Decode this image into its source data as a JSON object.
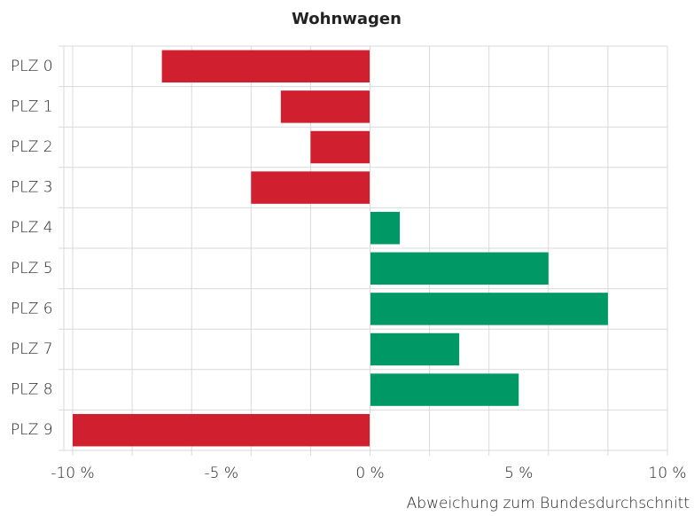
{
  "chart_data": {
    "type": "barh",
    "title": "Wohnwagen",
    "x_label": "Abweichung zum Bundesdurchschnitt",
    "categories": [
      "PLZ 0",
      "PLZ 1",
      "PLZ 2",
      "PLZ 3",
      "PLZ 4",
      "PLZ 5",
      "PLZ 6",
      "PLZ 7",
      "PLZ 8",
      "PLZ 9"
    ],
    "values": [
      -7,
      -3,
      -2,
      -4,
      1,
      6,
      8,
      3,
      5,
      -10
    ],
    "colors": [
      "#d0202f",
      "#d0202f",
      "#d0202f",
      "#d0202f",
      "#009966",
      "#009966",
      "#009966",
      "#009966",
      "#009966",
      "#d0202f"
    ],
    "xlim": [
      -10,
      10
    ],
    "xticks": [
      {
        "value": -10,
        "label": "-10 %"
      },
      {
        "value": -5,
        "label": "-5 %"
      },
      {
        "value": 0,
        "label": "0 %"
      },
      {
        "value": 5,
        "label": "5 %"
      },
      {
        "value": 10,
        "label": "10 %"
      }
    ],
    "xgrid": [
      -10,
      -8,
      -6,
      -4,
      -2,
      0,
      2,
      4,
      6,
      8,
      10
    ],
    "grid": true
  }
}
